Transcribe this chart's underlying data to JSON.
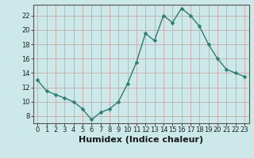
{
  "x": [
    0,
    1,
    2,
    3,
    4,
    5,
    6,
    7,
    8,
    9,
    10,
    11,
    12,
    13,
    14,
    15,
    16,
    17,
    18,
    19,
    20,
    21,
    22,
    23
  ],
  "y": [
    13.0,
    11.5,
    11.0,
    10.5,
    10.0,
    9.0,
    7.5,
    8.5,
    9.0,
    10.0,
    12.5,
    15.5,
    19.5,
    18.5,
    22.0,
    21.0,
    23.0,
    22.0,
    20.5,
    18.0,
    16.0,
    14.5,
    14.0,
    13.5
  ],
  "xlabel": "Humidex (Indice chaleur)",
  "ylim": [
    7,
    23.5
  ],
  "yticks": [
    8,
    10,
    12,
    14,
    16,
    18,
    20,
    22
  ],
  "xticks": [
    0,
    1,
    2,
    3,
    4,
    5,
    6,
    7,
    8,
    9,
    10,
    11,
    12,
    13,
    14,
    15,
    16,
    17,
    18,
    19,
    20,
    21,
    22,
    23
  ],
  "line_color": "#2e7d6e",
  "marker_color": "#2e7d6e",
  "bg_color": "#cce8e8",
  "grid_color": "#c8a8a8",
  "tick_label_fontsize": 6.0,
  "xlabel_fontsize": 8.0,
  "line_width": 1.0,
  "marker_size": 2.5
}
